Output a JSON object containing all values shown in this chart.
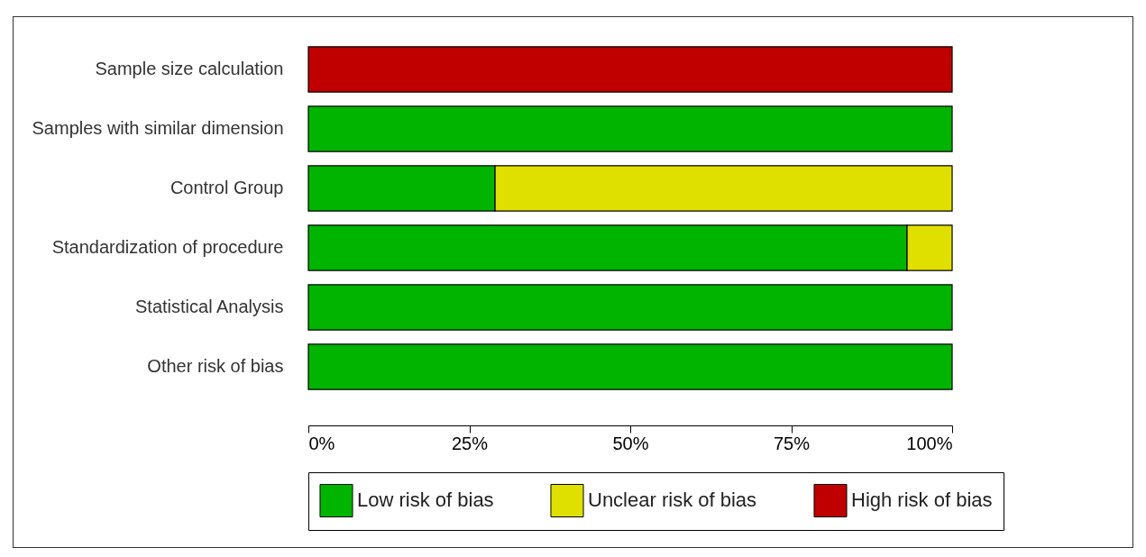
{
  "chart_data": {
    "type": "bar",
    "orientation": "horizontal",
    "stacked": true,
    "categories": [
      "Sample size calculation",
      "Samples with similar dimension",
      "Control Group",
      "Standardization of procedure",
      "Statistical Analysis",
      "Other risk of bias"
    ],
    "series": [
      {
        "name": "Low risk of bias",
        "color": "#00b400",
        "values": [
          null,
          100,
          29,
          93,
          100,
          100
        ]
      },
      {
        "name": "Unclear risk of bias",
        "color": "#e0e000",
        "values": [
          null,
          null,
          71,
          7,
          null,
          null
        ]
      },
      {
        "name": "High risk of bias",
        "color": "#c00000",
        "values": [
          100,
          null,
          null,
          null,
          null,
          null
        ]
      }
    ],
    "xlim": [
      0,
      100
    ],
    "xticks": [
      {
        "value": 0,
        "label": "0%"
      },
      {
        "value": 25,
        "label": "25%"
      },
      {
        "value": 50,
        "label": "50%"
      },
      {
        "value": 75,
        "label": "75%"
      },
      {
        "value": 100,
        "label": "100%"
      }
    ],
    "grid": false,
    "legend": "bottom"
  }
}
